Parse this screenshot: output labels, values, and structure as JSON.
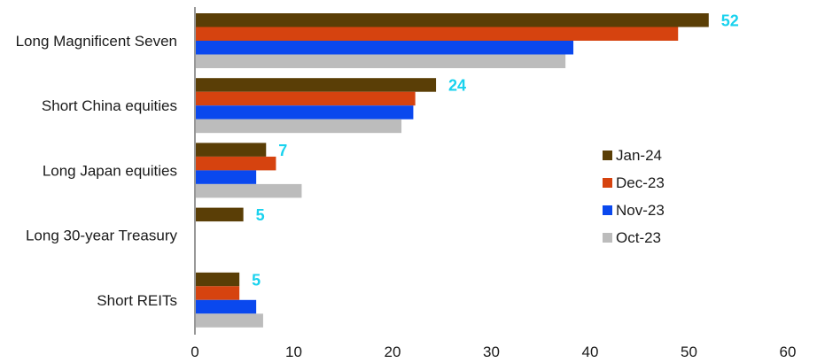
{
  "chart_data": {
    "type": "bar",
    "orientation": "horizontal",
    "categories": [
      "Long Magnificent Seven",
      "Short China equities",
      "Long Japan equities",
      "Long 30-year Treasury",
      "Short REITs"
    ],
    "series": [
      {
        "name": "Jan-24",
        "color": "#5a3e06",
        "values": [
          52,
          24.4,
          7.2,
          4.9,
          4.5
        ]
      },
      {
        "name": "Dec-23",
        "color": "#d6430f",
        "values": [
          48.9,
          22.3,
          8.2,
          0,
          4.5
        ]
      },
      {
        "name": "Nov-23",
        "color": "#0a48ee",
        "values": [
          38.3,
          22.1,
          6.2,
          0,
          6.2
        ]
      },
      {
        "name": "Oct-23",
        "color": "#bcbcbc",
        "values": [
          37.5,
          20.9,
          10.8,
          0,
          6.9
        ]
      }
    ],
    "value_labels": [
      "52",
      "24",
      "7",
      "5",
      "5"
    ],
    "value_label_color": "#19d2ee",
    "xlim": [
      0,
      60
    ],
    "xticks": [
      "0",
      "10",
      "20",
      "30",
      "40",
      "50",
      "60"
    ],
    "legend_position": "right",
    "grid": false
  }
}
